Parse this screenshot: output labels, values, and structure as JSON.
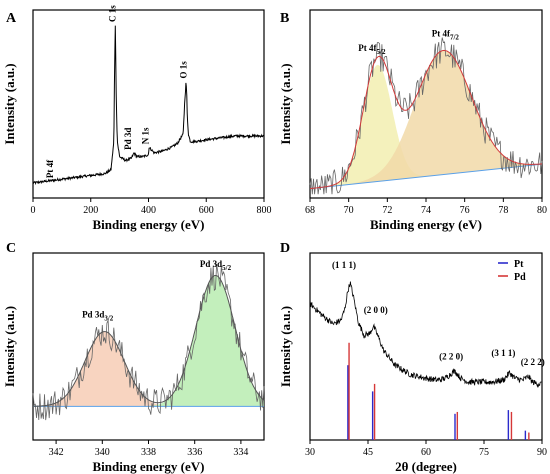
{
  "chart_data": [
    {
      "id": "A",
      "type": "line",
      "panel_label": "A",
      "xlabel": "Binding energy (eV)",
      "ylabel": "Intensity (a.u.)",
      "xlim": [
        0,
        800
      ],
      "ylim": [
        0,
        100
      ],
      "xticks": [
        0,
        200,
        400,
        600,
        800
      ],
      "series": [
        {
          "x": [
            0,
            50,
            100,
            150,
            200,
            250,
            270,
            280,
            282,
            284,
            285,
            286,
            288,
            292,
            300,
            320,
            340,
            350,
            360,
            380,
            400,
            402,
            420,
            450,
            480,
            500,
            520,
            525,
            530,
            532,
            534,
            538,
            545,
            560,
            600,
            650,
            700,
            750,
            800
          ],
          "y": [
            8,
            9,
            10,
            11,
            12,
            13,
            15,
            30,
            60,
            85,
            92,
            85,
            55,
            30,
            22,
            20,
            21,
            24,
            22,
            22,
            23,
            27,
            24,
            25,
            27,
            29,
            34,
            50,
            62,
            57,
            45,
            34,
            30,
            30,
            31,
            32,
            33,
            33,
            33
          ]
        }
      ],
      "annotations": [
        {
          "text": "Pt 4f",
          "x": 70,
          "y": 9
        },
        {
          "text": "C 1s",
          "x": 285,
          "y": 92
        },
        {
          "text": "Pd 3d",
          "x": 340,
          "y": 24
        },
        {
          "text": "N 1s",
          "x": 400,
          "y": 27
        },
        {
          "text": "O 1s",
          "x": 532,
          "y": 62
        }
      ]
    },
    {
      "id": "B",
      "type": "line",
      "panel_label": "B",
      "xlabel": "Binding energy (eV)",
      "ylabel": "Intensity (a.u.)",
      "xlim": [
        68,
        80
      ],
      "ylim": [
        0,
        100
      ],
      "xticks": [
        68,
        70,
        72,
        74,
        76,
        78,
        80
      ],
      "background": {
        "x": [
          68,
          80
        ],
        "y": [
          5,
          18
        ]
      },
      "fit_peaks": [
        {
          "name": "Pt 4f5/2",
          "center": 71.5,
          "sigma": 0.75,
          "height": 62,
          "color": "#f2eeb0"
        },
        {
          "name": "Pt 4f7/2",
          "center": 74.9,
          "sigma": 1.45,
          "height": 66,
          "color": "#f1d9a8"
        }
      ],
      "labels": [
        {
          "main": "Pt 4f",
          "sub": "5/2",
          "x": 71.2
        },
        {
          "main": "Pt 4f",
          "sub": "7/2",
          "x": 75.0
        }
      ]
    },
    {
      "id": "C",
      "type": "line",
      "panel_label": "C",
      "xlabel": "Binding energy (eV)",
      "ylabel": "Intensity (a.u.)",
      "xlim": [
        343,
        333
      ],
      "ylim": [
        0,
        100
      ],
      "xticks": [
        342,
        340,
        338,
        336,
        334
      ],
      "background": {
        "x": [
          343,
          333
        ],
        "y": [
          18,
          18
        ]
      },
      "fit_peaks": [
        {
          "name": "Pd 3d3/2",
          "center": 339.9,
          "sigma": 0.85,
          "height": 40,
          "color": "#f7cdb5"
        },
        {
          "name": "Pd 3d5/2",
          "center": 335.1,
          "sigma": 0.85,
          "height": 70,
          "color": "#b8ecb0"
        }
      ],
      "labels": [
        {
          "main": "Pd 3d",
          "sub": "3/2",
          "x": 340.2
        },
        {
          "main": "Pd 3d",
          "sub": "5/2",
          "x": 335.1
        }
      ]
    },
    {
      "id": "D",
      "type": "line",
      "panel_label": "D",
      "xlabel": "2θ (degree)",
      "ylabel": "Intensity (a.u.)",
      "xlim": [
        30,
        90
      ],
      "ylim": [
        0,
        100
      ],
      "xticks": [
        30,
        45,
        60,
        75,
        90
      ],
      "pattern": {
        "x": [
          30,
          33,
          36,
          38,
          39,
          39.8,
          40.4,
          41.3,
          42.5,
          44,
          45.5,
          46.4,
          47.5,
          49,
          52,
          56,
          60,
          63,
          65,
          67.4,
          69,
          71,
          74,
          77,
          80,
          81.6,
          83,
          85,
          86.5,
          87.5,
          89,
          90
        ],
        "y": [
          73,
          67,
          62,
          64,
          70,
          80,
          84,
          76,
          63,
          56,
          57,
          61,
          56,
          48,
          40,
          35,
          33,
          32,
          33,
          37,
          33,
          31,
          31,
          31,
          32,
          36,
          33,
          32,
          34,
          31,
          30,
          30
        ]
      },
      "reference_lines": [
        {
          "material": "Pt",
          "positions": [
            39.8,
            46.2,
            67.5,
            81.3,
            85.7
          ],
          "heights": [
            40,
            26,
            14,
            16,
            5
          ],
          "color": "#2b2bcc"
        },
        {
          "material": "Pd",
          "positions": [
            40.1,
            46.7,
            68.1,
            82.1,
            86.6
          ],
          "heights": [
            52,
            30,
            15,
            15,
            4
          ],
          "color": "#d63838"
        }
      ],
      "legend": [
        {
          "name": "Pt",
          "color": "#2b2bcc"
        },
        {
          "name": "Pd",
          "color": "#d63838"
        }
      ],
      "annotations": [
        {
          "text": "(1 1 1)",
          "x": 38.8,
          "y": 92
        },
        {
          "text": "(2 0 0)",
          "x": 47.0,
          "y": 68
        },
        {
          "text": "(2 2 0)",
          "x": 66.5,
          "y": 43
        },
        {
          "text": "(3 1 1)",
          "x": 80.0,
          "y": 45
        },
        {
          "text": "(2 2 2)",
          "x": 87.6,
          "y": 40
        }
      ]
    }
  ]
}
